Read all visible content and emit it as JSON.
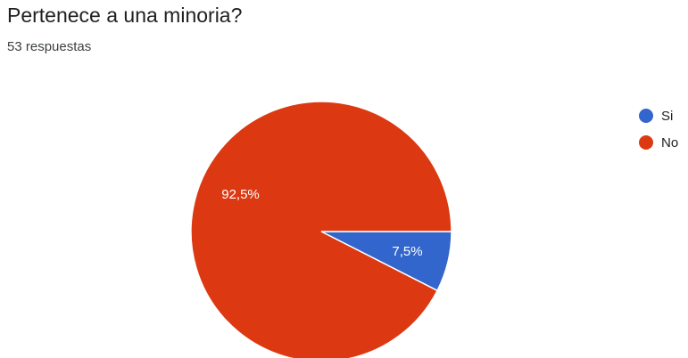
{
  "header": {
    "title": "Pertenece a una minoria?",
    "subtitle": "53 respuestas"
  },
  "chart_data": {
    "type": "pie",
    "categories": [
      "Si",
      "No"
    ],
    "values": [
      7.5,
      92.5
    ],
    "data_labels": [
      "7,5%",
      "92,5%"
    ],
    "colors": [
      "#3366cc",
      "#dc3912"
    ],
    "legend_position": "right"
  }
}
